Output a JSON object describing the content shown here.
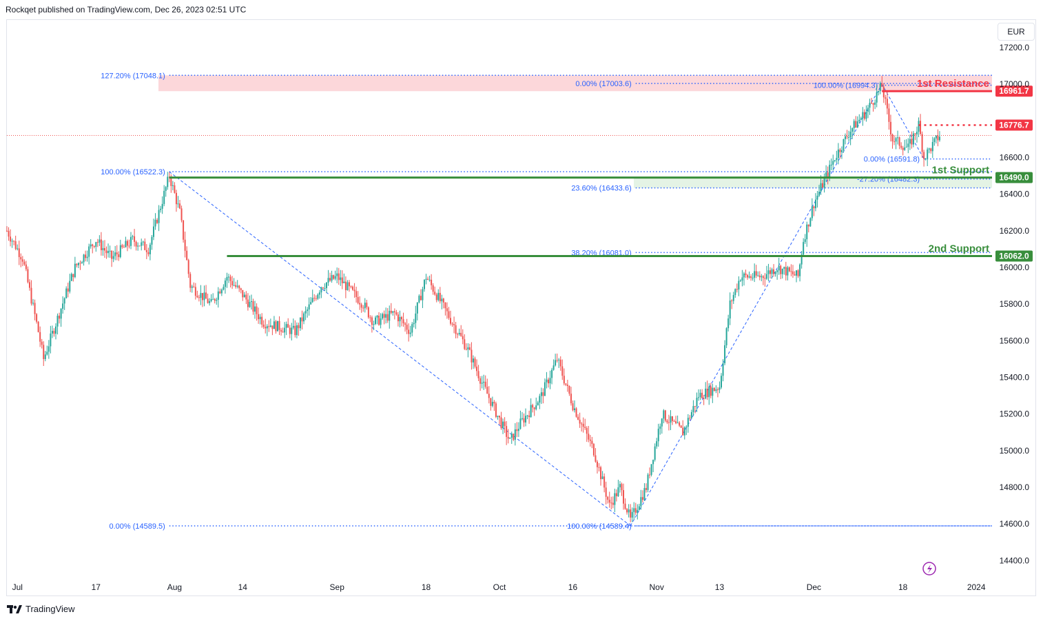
{
  "header": {
    "publisher": "Rockqet published on TradingView.com, Dec 26, 2023 02:51 UTC"
  },
  "toolbar": {
    "currency": "EUR"
  },
  "footer": {
    "brand": "TradingView"
  },
  "colors": {
    "up": "#26a69a",
    "down": "#ef5350",
    "fib": "#2962ff",
    "support": "#388e3c",
    "resistance": "#f23645"
  },
  "chart_data": {
    "type": "candlestick",
    "y_unit": "EUR",
    "ylim": [
      14300,
      17350
    ],
    "yticks": [
      14400,
      14600,
      14800,
      15000,
      15200,
      15400,
      15600,
      15800,
      16000,
      16200,
      16400,
      16600,
      16800,
      17000,
      17200
    ],
    "ytick_labels": [
      "14400.0",
      "14600.0",
      "14800.0",
      "15000.0",
      "15200.0",
      "15400.0",
      "15600.0",
      "15800.0",
      "16000.0",
      "16200.0",
      "16400.0",
      "16600.0",
      "16800.0",
      "17000.0",
      "17200.0"
    ],
    "xlim": [
      "2023-06-30",
      "2024-01-04"
    ],
    "xticks": [
      {
        "date": "2023-07-01",
        "label": "Jul"
      },
      {
        "date": "2023-07-17",
        "label": "17"
      },
      {
        "date": "2023-08-01",
        "label": "Aug"
      },
      {
        "date": "2023-08-14",
        "label": "14"
      },
      {
        "date": "2023-09-01",
        "label": "Sep"
      },
      {
        "date": "2023-09-18",
        "label": "18"
      },
      {
        "date": "2023-10-02",
        "label": "Oct"
      },
      {
        "date": "2023-10-16",
        "label": "16"
      },
      {
        "date": "2023-11-01",
        "label": "Nov"
      },
      {
        "date": "2023-11-13",
        "label": "13"
      },
      {
        "date": "2023-12-01",
        "label": "Dec"
      },
      {
        "date": "2023-12-18",
        "label": "18"
      },
      {
        "date": "2024-01-01",
        "label": "2024"
      }
    ],
    "path_points": [
      {
        "date": "2023-06-30",
        "value": 16200
      },
      {
        "date": "2023-07-03",
        "value": 16050
      },
      {
        "date": "2023-07-06",
        "value": 15650
      },
      {
        "date": "2023-07-07",
        "value": 15500
      },
      {
        "date": "2023-07-10",
        "value": 15750
      },
      {
        "date": "2023-07-13",
        "value": 16000
      },
      {
        "date": "2023-07-17",
        "value": 16150
      },
      {
        "date": "2023-07-20",
        "value": 16050
      },
      {
        "date": "2023-07-24",
        "value": 16150
      },
      {
        "date": "2023-07-27",
        "value": 16100
      },
      {
        "date": "2023-07-31",
        "value": 16500
      },
      {
        "date": "2023-08-02",
        "value": 16300
      },
      {
        "date": "2023-08-04",
        "value": 15900
      },
      {
        "date": "2023-08-08",
        "value": 15800
      },
      {
        "date": "2023-08-11",
        "value": 15950
      },
      {
        "date": "2023-08-14",
        "value": 15850
      },
      {
        "date": "2023-08-18",
        "value": 15700
      },
      {
        "date": "2023-08-24",
        "value": 15650
      },
      {
        "date": "2023-08-29",
        "value": 15900
      },
      {
        "date": "2023-09-01",
        "value": 15950
      },
      {
        "date": "2023-09-06",
        "value": 15800
      },
      {
        "date": "2023-09-08",
        "value": 15700
      },
      {
        "date": "2023-09-12",
        "value": 15750
      },
      {
        "date": "2023-09-15",
        "value": 15650
      },
      {
        "date": "2023-09-18",
        "value": 15950
      },
      {
        "date": "2023-09-22",
        "value": 15750
      },
      {
        "date": "2023-09-26",
        "value": 15550
      },
      {
        "date": "2023-09-29",
        "value": 15350
      },
      {
        "date": "2023-10-04",
        "value": 15050
      },
      {
        "date": "2023-10-06",
        "value": 15150
      },
      {
        "date": "2023-10-10",
        "value": 15300
      },
      {
        "date": "2023-10-13",
        "value": 15500
      },
      {
        "date": "2023-10-16",
        "value": 15250
      },
      {
        "date": "2023-10-20",
        "value": 15000
      },
      {
        "date": "2023-10-23",
        "value": 14700
      },
      {
        "date": "2023-10-25",
        "value": 14800
      },
      {
        "date": "2023-10-27",
        "value": 14620
      },
      {
        "date": "2023-10-30",
        "value": 14800
      },
      {
        "date": "2023-11-02",
        "value": 15200
      },
      {
        "date": "2023-11-06",
        "value": 15100
      },
      {
        "date": "2023-11-09",
        "value": 15300
      },
      {
        "date": "2023-11-13",
        "value": 15350
      },
      {
        "date": "2023-11-15",
        "value": 15800
      },
      {
        "date": "2023-11-17",
        "value": 15950
      },
      {
        "date": "2023-11-21",
        "value": 15950
      },
      {
        "date": "2023-11-24",
        "value": 16000
      },
      {
        "date": "2023-11-28",
        "value": 15950
      },
      {
        "date": "2023-11-29",
        "value": 16150
      },
      {
        "date": "2023-12-01",
        "value": 16350
      },
      {
        "date": "2023-12-05",
        "value": 16600
      },
      {
        "date": "2023-12-08",
        "value": 16750
      },
      {
        "date": "2023-12-11",
        "value": 16850
      },
      {
        "date": "2023-12-14",
        "value": 16990
      },
      {
        "date": "2023-12-16",
        "value": 16700
      },
      {
        "date": "2023-12-19",
        "value": 16650
      },
      {
        "date": "2023-12-21",
        "value": 16780
      },
      {
        "date": "2023-12-22",
        "value": 16600
      },
      {
        "date": "2023-12-25",
        "value": 16720
      }
    ],
    "current_price": 16720,
    "resistance_zone": {
      "from": 16961.7,
      "to": 17048.1
    },
    "support_zone": {
      "from": 16433.6,
      "to": 16490.0
    },
    "levels": [
      {
        "value": 16961.7,
        "label": "1st Resistance",
        "badge": "16961.7",
        "color": "#f23645",
        "style": "solid",
        "start": "2023-12-14"
      },
      {
        "value": 16776.7,
        "label": "",
        "badge": "16776.7",
        "color": "#f23645",
        "style": "dotted",
        "start": "2023-12-21"
      },
      {
        "value": 16490.0,
        "label": "1st Support",
        "badge": "16490.0",
        "color": "#388e3c",
        "style": "solid",
        "start": "2023-07-31"
      },
      {
        "value": 16062.0,
        "label": "2nd Support",
        "badge": "16062.0",
        "color": "#388e3c",
        "style": "solid",
        "start": "2023-08-11"
      }
    ],
    "fib_levels": [
      {
        "text": "127.20% (17048.1)",
        "value": 17048.1,
        "start": "2023-07-31",
        "label_side": "left"
      },
      {
        "text": "100.00% (16522.3)",
        "value": 16522.3,
        "start": "2023-07-31",
        "label_side": "left"
      },
      {
        "text": "0.00% (14589.5)",
        "value": 14589.5,
        "start": "2023-07-31",
        "label_side": "left"
      },
      {
        "text": "0.00% (17003.6)",
        "value": 17003.6,
        "start": "2023-10-28",
        "label_side": "left"
      },
      {
        "text": "23.60% (16433.6)",
        "value": 16433.6,
        "start": "2023-10-28",
        "label_side": "left"
      },
      {
        "text": "38.20% (16081.0)",
        "value": 16081.0,
        "start": "2023-10-28",
        "label_side": "left"
      },
      {
        "text": "100.00% (14589.4)",
        "value": 14589.4,
        "start": "2023-10-28",
        "label_side": "left"
      },
      {
        "text": "100.00% (16994.3)",
        "value": 16994.3,
        "start": "2023-12-14",
        "label_side": "left"
      },
      {
        "text": "0.00% (16591.8)",
        "value": 16591.8,
        "start": "2023-12-22",
        "label_side": "left"
      },
      {
        "text": "-27.20% (16482.3)",
        "value": 16482.3,
        "start": "2023-12-22",
        "label_side": "left"
      }
    ],
    "trend_lines": [
      {
        "from": {
          "date": "2023-07-31",
          "value": 16522
        },
        "to": {
          "date": "2023-10-27",
          "value": 14590
        }
      },
      {
        "from": {
          "date": "2023-10-27",
          "value": 14590
        },
        "to": {
          "date": "2023-12-14",
          "value": 17000
        }
      },
      {
        "from": {
          "date": "2023-12-14",
          "value": 17000
        },
        "to": {
          "date": "2023-12-22",
          "value": 16592
        }
      }
    ]
  }
}
